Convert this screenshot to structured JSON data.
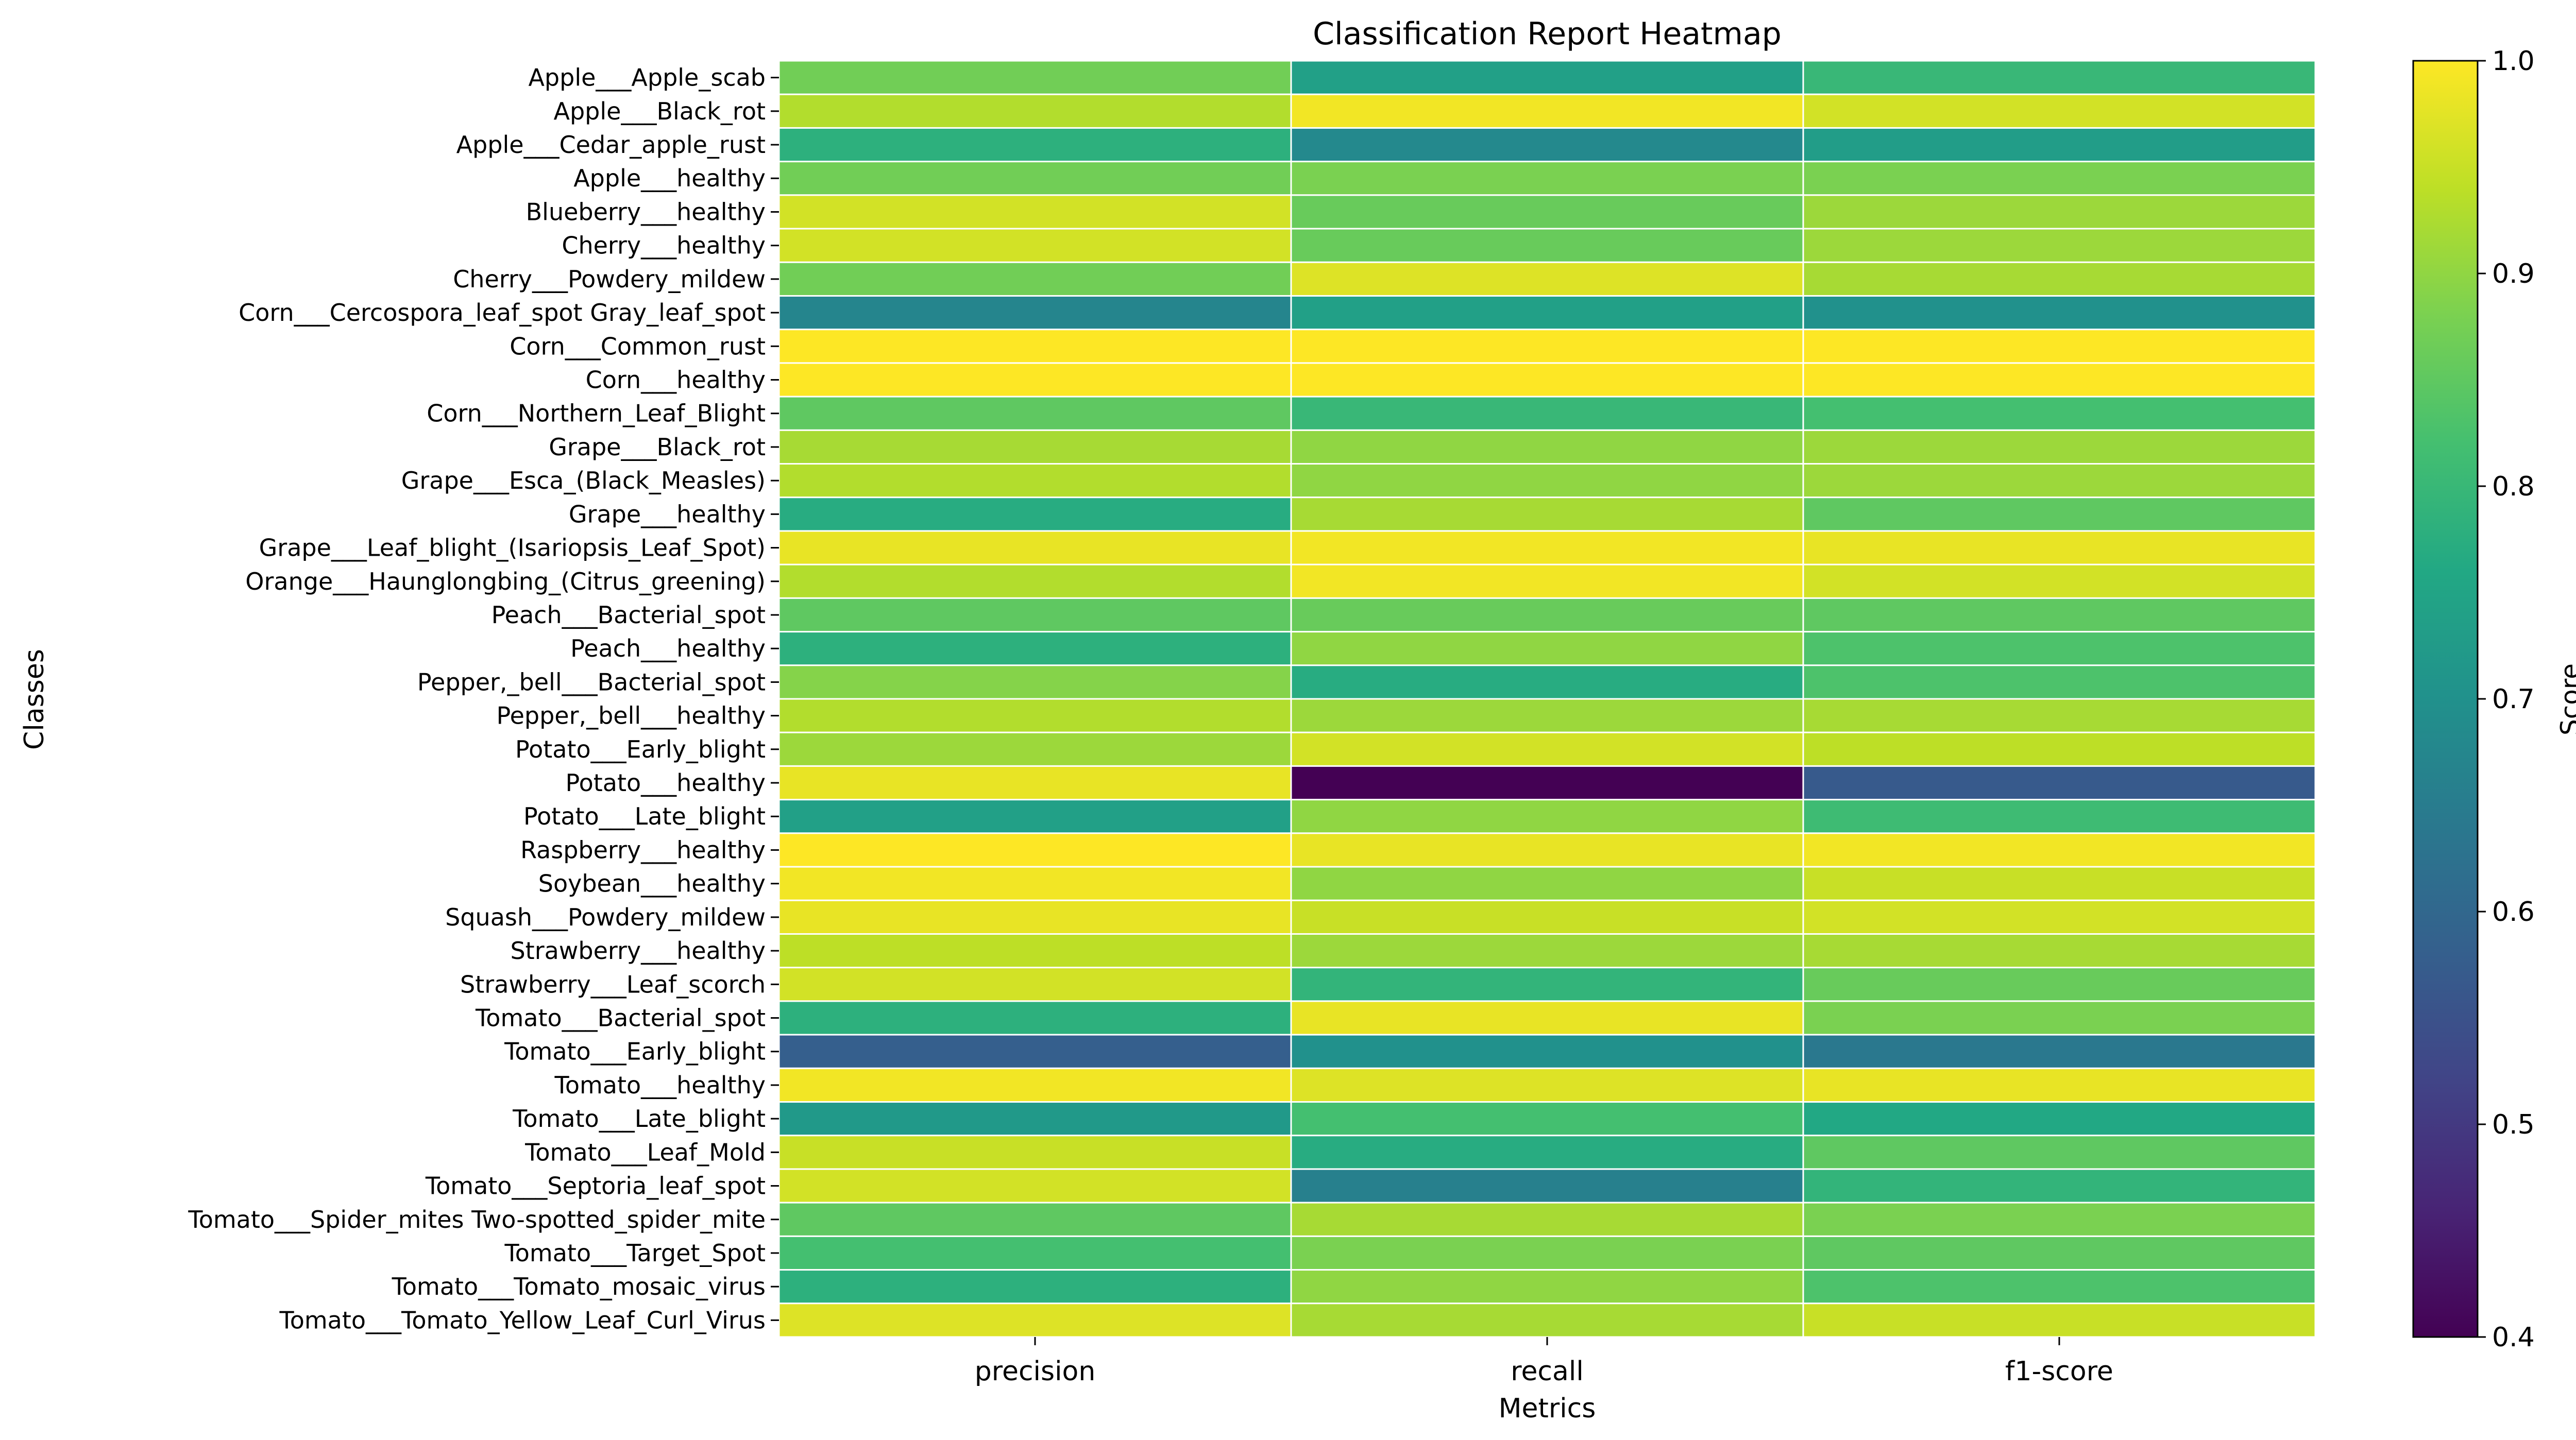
{
  "chart_data": {
    "type": "heatmap",
    "title": "Classification Report Heatmap",
    "xlabel": "Metrics",
    "ylabel": "Classes",
    "colorbar_label": "Score",
    "colormap": "viridis",
    "vmin": 0.4,
    "vmax": 1.0,
    "colorbar_ticks": [
      "0.4",
      "0.5",
      "0.6",
      "0.7",
      "0.8",
      "0.9",
      "1.0"
    ],
    "columns": [
      "precision",
      "recall",
      "f1-score"
    ],
    "rows": [
      "Apple___Apple_scab",
      "Apple___Black_rot",
      "Apple___Cedar_apple_rust",
      "Apple___healthy",
      "Blueberry___healthy",
      "Cherry___healthy",
      "Cherry___Powdery_mildew",
      "Corn___Cercospora_leaf_spot Gray_leaf_spot",
      "Corn___Common_rust",
      "Corn___healthy",
      "Corn___Northern_Leaf_Blight",
      "Grape___Black_rot",
      "Grape___Esca_(Black_Measles)",
      "Grape___healthy",
      "Grape___Leaf_blight_(Isariopsis_Leaf_Spot)",
      "Orange___Haunglongbing_(Citrus_greening)",
      "Peach___Bacterial_spot",
      "Peach___healthy",
      "Pepper,_bell___Bacterial_spot",
      "Pepper,_bell___healthy",
      "Potato___Early_blight",
      "Potato___healthy",
      "Potato___Late_blight",
      "Raspberry___healthy",
      "Soybean___healthy",
      "Squash___Powdery_mildew",
      "Strawberry___healthy",
      "Strawberry___Leaf_scorch",
      "Tomato___Bacterial_spot",
      "Tomato___Early_blight",
      "Tomato___healthy",
      "Tomato___Late_blight",
      "Tomato___Leaf_Mold",
      "Tomato___Septoria_leaf_spot",
      "Tomato___Spider_mites Two-spotted_spider_mite",
      "Tomato___Target_Spot",
      "Tomato___Tomato_mosaic_virus",
      "Tomato___Tomato_Yellow_Leaf_Curl_Virus"
    ],
    "values": [
      [
        0.87,
        0.74,
        0.8
      ],
      [
        0.93,
        0.99,
        0.96
      ],
      [
        0.78,
        0.68,
        0.73
      ],
      [
        0.87,
        0.88,
        0.88
      ],
      [
        0.96,
        0.86,
        0.91
      ],
      [
        0.96,
        0.86,
        0.91
      ],
      [
        0.87,
        0.97,
        0.92
      ],
      [
        0.67,
        0.74,
        0.7
      ],
      [
        1.0,
        1.0,
        1.0
      ],
      [
        1.0,
        1.0,
        1.0
      ],
      [
        0.85,
        0.8,
        0.82
      ],
      [
        0.92,
        0.9,
        0.91
      ],
      [
        0.93,
        0.9,
        0.91
      ],
      [
        0.77,
        0.92,
        0.85
      ],
      [
        0.98,
        0.99,
        0.98
      ],
      [
        0.93,
        0.99,
        0.96
      ],
      [
        0.85,
        0.86,
        0.85
      ],
      [
        0.78,
        0.9,
        0.83
      ],
      [
        0.89,
        0.77,
        0.83
      ],
      [
        0.93,
        0.91,
        0.92
      ],
      [
        0.91,
        0.96,
        0.94
      ],
      [
        0.98,
        0.4,
        0.57
      ],
      [
        0.74,
        0.9,
        0.81
      ],
      [
        1.0,
        0.98,
        0.99
      ],
      [
        0.99,
        0.9,
        0.95
      ],
      [
        0.98,
        0.95,
        0.96
      ],
      [
        0.94,
        0.91,
        0.92
      ],
      [
        0.96,
        0.79,
        0.86
      ],
      [
        0.78,
        0.98,
        0.88
      ],
      [
        0.58,
        0.7,
        0.64
      ],
      [
        0.99,
        0.97,
        0.98
      ],
      [
        0.72,
        0.82,
        0.76
      ],
      [
        0.95,
        0.77,
        0.85
      ],
      [
        0.96,
        0.66,
        0.79
      ],
      [
        0.85,
        0.92,
        0.88
      ],
      [
        0.82,
        0.88,
        0.85
      ],
      [
        0.78,
        0.9,
        0.83
      ],
      [
        0.97,
        0.92,
        0.95
      ]
    ]
  }
}
